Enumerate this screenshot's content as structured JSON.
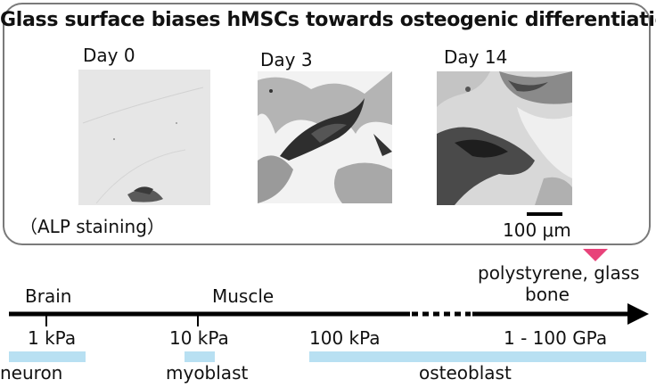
{
  "title": "Glass surface biases hMSCs towards osteogenic differentiation",
  "micrographs": [
    {
      "label": "Day 0"
    },
    {
      "label": "Day 3"
    },
    {
      "label": "Day 14"
    }
  ],
  "caption": "（ALP staining）",
  "scale_bar_label": "100 μm",
  "tissues": {
    "brain": "Brain",
    "muscle": "Muscle",
    "polystyrene_glass": "polystyrene, glass",
    "bone": "bone"
  },
  "axis": {
    "ticks": [
      "1 kPa",
      "10 kPa",
      "100 kPa",
      "1 - 100 GPa"
    ]
  },
  "cells": {
    "neuron": "neuron",
    "myoblast": "myoblast",
    "osteoblast": "osteoblast"
  },
  "colors": {
    "panel_border": "#7a7a7a",
    "pointer": "#e8437a",
    "cell_bar": "#b8e0f2",
    "axis": "#000000"
  }
}
